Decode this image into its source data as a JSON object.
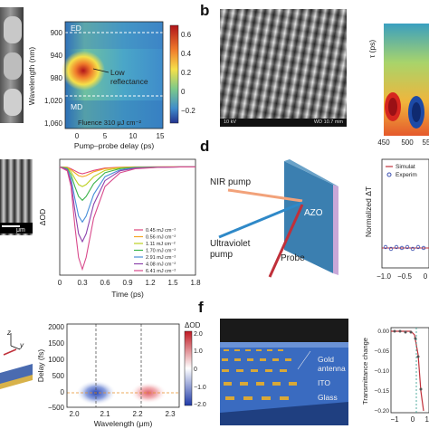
{
  "panels": {
    "b_letter": "b",
    "d_letter": "d",
    "f_letter": "f"
  },
  "top_left": {
    "yticks": [
      "900",
      "940",
      "980",
      "1,020",
      "1,060"
    ],
    "ylabel": "Wavelength (nm)",
    "xticks": [
      "0",
      "5",
      "10",
      "15"
    ],
    "xlabel": "Pump–probe delay (ps)",
    "ed_label": "ED",
    "md_label": "MD",
    "annotation": "Low\nreflectance",
    "fluence": "Fluence 310 μJ cm⁻²",
    "colorbar_ticks": [
      "0.6",
      "0.4",
      "0.2",
      "0",
      "−0.2"
    ]
  },
  "sem_b": {
    "footer_left": "10 kV",
    "footer_right": "WD 10.7 mm"
  },
  "top_right": {
    "ylabel": "τ (ps)",
    "xticks": [
      "450",
      "500",
      "55"
    ]
  },
  "mid_left": {
    "scale_label": "μm"
  },
  "mid_chart": {
    "ylabel": "ΔOD",
    "xlabel": "Time (ps)",
    "xticks": [
      "0",
      "0.3",
      "0.6",
      "0.9",
      "1.2",
      "1.5",
      "1.8"
    ]
  },
  "chart_data": {
    "type": "line",
    "xlabel": "Time (ps)",
    "ylabel": "ΔOD",
    "xlim": [
      0,
      1.8
    ],
    "x": [
      0.0,
      0.1,
      0.15,
      0.2,
      0.25,
      0.3,
      0.35,
      0.45,
      0.6,
      0.8,
      1.0,
      1.3,
      1.6,
      1.8
    ],
    "series": [
      {
        "name": "0.45 mJ cm⁻²",
        "color": "#e0457b",
        "values": [
          0,
          -0.002,
          -0.01,
          -0.02,
          -0.03,
          -0.035,
          -0.03,
          -0.018,
          -0.006,
          -0.002,
          0,
          0,
          0,
          0
        ]
      },
      {
        "name": "0.56 mJ cm⁻²",
        "color": "#f5a623",
        "values": [
          0,
          -0.003,
          -0.015,
          -0.03,
          -0.045,
          -0.05,
          -0.045,
          -0.025,
          -0.009,
          -0.003,
          -0.001,
          0,
          0,
          0
        ]
      },
      {
        "name": "1.11 mJ cm⁻²",
        "color": "#bcd020",
        "values": [
          0,
          -0.005,
          -0.025,
          -0.06,
          -0.09,
          -0.1,
          -0.09,
          -0.05,
          -0.018,
          -0.005,
          -0.002,
          0,
          0,
          0
        ]
      },
      {
        "name": "1.70 mJ cm⁻²",
        "color": "#3cb44b",
        "values": [
          0,
          -0.008,
          -0.04,
          -0.1,
          -0.15,
          -0.17,
          -0.15,
          -0.085,
          -0.03,
          -0.009,
          -0.003,
          -0.001,
          0,
          0
        ]
      },
      {
        "name": "2.91 mJ cm⁻²",
        "color": "#4a90d9",
        "values": [
          0,
          -0.012,
          -0.06,
          -0.16,
          -0.25,
          -0.28,
          -0.25,
          -0.14,
          -0.05,
          -0.015,
          -0.005,
          -0.002,
          0,
          0
        ]
      },
      {
        "name": "4.08 mJ cm⁻²",
        "color": "#8e44ad",
        "values": [
          0,
          -0.015,
          -0.08,
          -0.22,
          -0.34,
          -0.38,
          -0.34,
          -0.19,
          -0.07,
          -0.02,
          -0.007,
          -0.002,
          0,
          0
        ]
      },
      {
        "name": "6.41 mJ cm⁻²",
        "color": "#d94a8c",
        "values": [
          0,
          -0.02,
          -0.1,
          -0.3,
          -0.46,
          -0.52,
          -0.46,
          -0.26,
          -0.1,
          -0.03,
          -0.01,
          -0.003,
          0,
          0
        ]
      }
    ]
  },
  "diagram_d": {
    "nir_pump": "NIR pump",
    "uv_pump_line1": "Ultraviolet",
    "uv_pump_line2": "pump",
    "probe": "Probe",
    "azo": "AZO"
  },
  "mid_right": {
    "ylabel": "Normalized ΔT",
    "legend1": "Simulat",
    "legend2": "Experim",
    "xticks": [
      "−1.0",
      "−0.5",
      "0"
    ]
  },
  "bottom_left": {
    "axis_z": "z",
    "axis_y": "y"
  },
  "bottom_chart": {
    "ylabel": "Delay (fs)",
    "xlabel": "Wavelength (μm)",
    "yticks": [
      "2000",
      "1500",
      "1000",
      "500",
      "0",
      "−500"
    ],
    "xticks": [
      "2.0",
      "2.1",
      "2.2",
      "2.3"
    ],
    "cb_title": "ΔOD",
    "cb_ticks": [
      "2.0",
      "1.0",
      "0",
      "−1.0",
      "−2.0"
    ]
  },
  "diagram_f": {
    "gold_line1": "Gold",
    "gold_line2": "antenna",
    "ito": "ITO",
    "glass": "Glass"
  },
  "bottom_right": {
    "ylabel": "Transmittance change",
    "yticks": [
      "0.00",
      "−0.05",
      "−0.10",
      "−0.15",
      "−0.20"
    ],
    "xticks": [
      "−1",
      "0",
      "1"
    ]
  }
}
